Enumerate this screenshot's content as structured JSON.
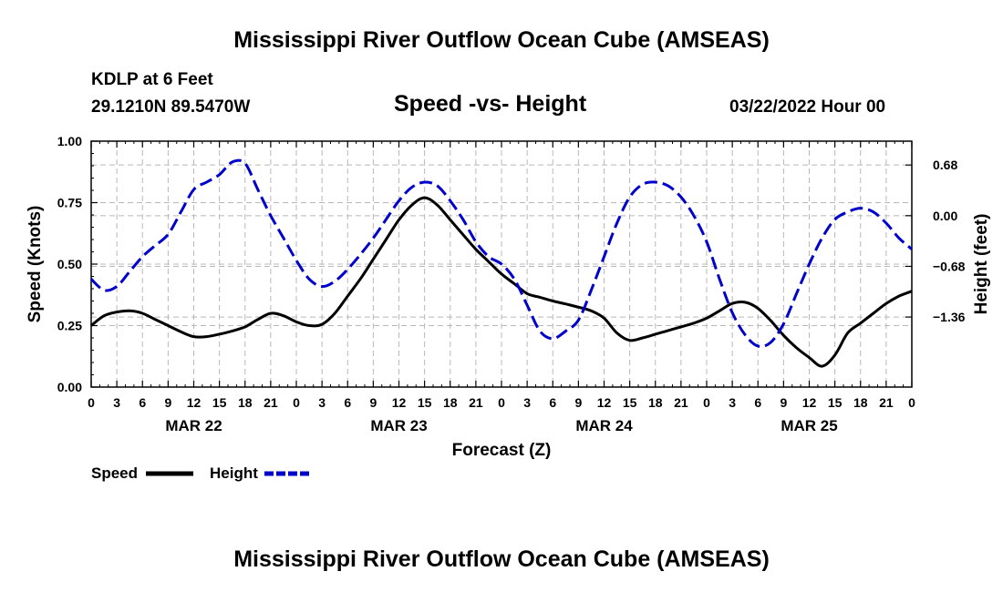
{
  "page": {
    "title": "Mississippi River Outflow Ocean Cube (AMSEAS)",
    "station": "KDLP at 6 Feet",
    "coords": "29.1210N  89.5470W",
    "subtitle": "Speed -vs- Height",
    "date": "03/22/2022 Hour 00",
    "footer_title": "Mississippi River Outflow Ocean Cube (AMSEAS)"
  },
  "legend": {
    "speed_label": "Speed",
    "height_label": "Height",
    "speed_color": "#000000",
    "height_color": "#0000cc"
  },
  "chart_data": {
    "type": "line",
    "title": "Speed -vs- Height",
    "xlabel": "Forecast (Z)",
    "ylabel": "Speed (Knots)",
    "y2label": "Height (feet)",
    "xlim": [
      0,
      96
    ],
    "ylim": [
      0,
      1.0
    ],
    "y2lim": [
      -2.3,
      1.0
    ],
    "grid": true,
    "legend_position": "bottom-left",
    "x_ticks": [
      0,
      3,
      6,
      9,
      12,
      15,
      18,
      21,
      24,
      27,
      30,
      33,
      36,
      39,
      42,
      45,
      48,
      51,
      54,
      57,
      60,
      63,
      66,
      69,
      72,
      75,
      78,
      81,
      84,
      87,
      90,
      93,
      96
    ],
    "x_tick_labels": [
      "0",
      "3",
      "6",
      "9",
      "12",
      "15",
      "18",
      "21",
      "0",
      "3",
      "6",
      "9",
      "12",
      "15",
      "18",
      "21",
      "0",
      "3",
      "6",
      "9",
      "12",
      "15",
      "18",
      "21",
      "0",
      "3",
      "6",
      "9",
      "12",
      "15",
      "18",
      "21",
      "0"
    ],
    "date_labels": [
      {
        "hour": 12,
        "label": "MAR 22"
      },
      {
        "hour": 36,
        "label": "MAR 23"
      },
      {
        "hour": 60,
        "label": "MAR 24"
      },
      {
        "hour": 84,
        "label": "MAR 25"
      }
    ],
    "y_ticks": [
      0,
      0.25,
      0.5,
      0.75,
      1.0
    ],
    "y_tick_labels": [
      "0.00",
      "0.25",
      "0.50",
      "0.75",
      "1.00"
    ],
    "y2_ticks": [
      0.68,
      0.0,
      -0.68,
      -1.36
    ],
    "y2_tick_labels": [
      "0.68",
      "0.00",
      "−0.68",
      "−1.36"
    ],
    "series": [
      {
        "name": "Speed",
        "axis": "left",
        "color": "#000000",
        "dash": false,
        "x": [
          0,
          1.5,
          3,
          4.5,
          6,
          7.5,
          9,
          10.5,
          12,
          13.5,
          15,
          16.5,
          18,
          19.5,
          21,
          22.5,
          24,
          25.5,
          27,
          28.5,
          30,
          31.5,
          33,
          34.5,
          36,
          37.5,
          39,
          40.5,
          42,
          43.5,
          45,
          46.5,
          48,
          49.5,
          51,
          52.5,
          54,
          55.5,
          57,
          58.5,
          60,
          61.5,
          63,
          64.5,
          66,
          67.5,
          69,
          70.5,
          72,
          73.5,
          75,
          76.5,
          78,
          79.5,
          81,
          82.5,
          84,
          85.5,
          87,
          88.5,
          90,
          91.5,
          93,
          94.5,
          96
        ],
        "values": [
          0.25,
          0.29,
          0.305,
          0.31,
          0.3,
          0.275,
          0.25,
          0.225,
          0.205,
          0.205,
          0.215,
          0.228,
          0.245,
          0.275,
          0.3,
          0.29,
          0.265,
          0.25,
          0.255,
          0.3,
          0.37,
          0.44,
          0.52,
          0.6,
          0.68,
          0.74,
          0.77,
          0.74,
          0.68,
          0.62,
          0.56,
          0.51,
          0.46,
          0.42,
          0.38,
          0.365,
          0.35,
          0.338,
          0.325,
          0.31,
          0.28,
          0.22,
          0.19,
          0.2,
          0.215,
          0.23,
          0.245,
          0.26,
          0.28,
          0.31,
          0.34,
          0.345,
          0.32,
          0.27,
          0.21,
          0.16,
          0.12,
          0.085,
          0.13,
          0.22,
          0.26,
          0.3,
          0.34,
          0.37,
          0.39
        ]
      },
      {
        "name": "Height",
        "axis": "right",
        "color": "#0000cc",
        "dash": true,
        "x": [
          0,
          1.5,
          3,
          4.5,
          6,
          7.5,
          9,
          10.5,
          12,
          13.5,
          15,
          16.5,
          18,
          19.5,
          21,
          22.5,
          24,
          25.5,
          27,
          28.5,
          30,
          31.5,
          33,
          34.5,
          36,
          37.5,
          39,
          40.5,
          42,
          43.5,
          45,
          46.5,
          48,
          49.5,
          51,
          52.5,
          54,
          55.5,
          57,
          58.5,
          60,
          61.5,
          63,
          64.5,
          66,
          67.5,
          69,
          70.5,
          72,
          73.5,
          75,
          76.5,
          78,
          79.5,
          81,
          82.5,
          84,
          85.5,
          87,
          88.5,
          90,
          91.5,
          93,
          94.5,
          96
        ],
        "values": [
          -0.85,
          -1.0,
          -0.95,
          -0.75,
          -0.55,
          -0.4,
          -0.25,
          0.05,
          0.35,
          0.45,
          0.55,
          0.72,
          0.7,
          0.35,
          0.0,
          -0.3,
          -0.6,
          -0.85,
          -0.95,
          -0.88,
          -0.72,
          -0.52,
          -0.3,
          -0.05,
          0.2,
          0.38,
          0.45,
          0.4,
          0.2,
          -0.05,
          -0.35,
          -0.55,
          -0.65,
          -0.85,
          -1.2,
          -1.55,
          -1.65,
          -1.55,
          -1.4,
          -1.0,
          -0.55,
          -0.1,
          0.25,
          0.42,
          0.45,
          0.4,
          0.25,
          0.0,
          -0.35,
          -0.85,
          -1.3,
          -1.6,
          -1.75,
          -1.7,
          -1.45,
          -1.05,
          -0.65,
          -0.3,
          -0.05,
          0.05,
          0.1,
          0.05,
          -0.1,
          -0.3,
          -0.45
        ]
      }
    ]
  }
}
